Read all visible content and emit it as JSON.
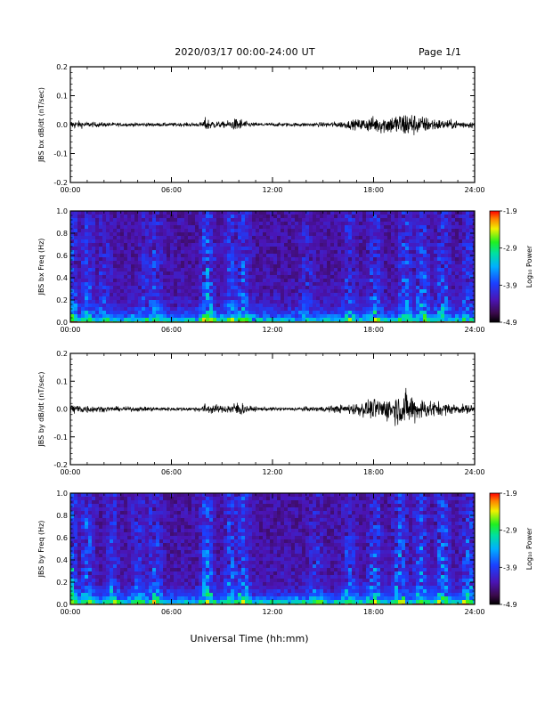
{
  "header": {
    "title": "2020/03/17  00:00-24:00 UT",
    "page": "Page 1/1"
  },
  "x_axis_title": "Universal Time (hh:mm)",
  "chart_data": [
    {
      "type": "line",
      "ylabel": "JBS bx dB/dt (nT/sec)",
      "ylim": [
        -0.2,
        0.2
      ],
      "yticks": [
        "0.2",
        "0.1",
        "0.0",
        "-0.1",
        "-0.2"
      ],
      "xlim_hours": [
        0,
        24
      ],
      "xticks": [
        "00:00",
        "06:00",
        "12:00",
        "18:00",
        "24:00"
      ],
      "series": [
        {
          "color": "#000000",
          "envelope_time_hours": [
            0,
            1,
            2,
            3,
            4,
            5,
            6,
            7,
            7.8,
            8,
            8.5,
            9,
            9.5,
            10,
            10.2,
            10.5,
            11,
            12,
            13,
            14,
            15,
            16,
            16.5,
            17,
            17.5,
            18,
            18.5,
            19,
            19.5,
            20,
            20.5,
            21,
            21.5,
            22,
            23,
            24
          ],
          "envelope_amplitude": [
            0.02,
            0.012,
            0.01,
            0.008,
            0.008,
            0.008,
            0.008,
            0.008,
            0.01,
            0.03,
            0.018,
            0.012,
            0.02,
            0.03,
            0.025,
            0.012,
            0.008,
            0.008,
            0.008,
            0.008,
            0.01,
            0.014,
            0.018,
            0.022,
            0.03,
            0.035,
            0.04,
            0.04,
            0.05,
            0.06,
            0.045,
            0.035,
            0.03,
            0.022,
            0.018,
            0.014
          ]
        }
      ]
    },
    {
      "type": "heatmap",
      "ylabel": "JBS bx Freq (Hz)",
      "ylim": [
        0.0,
        1.0
      ],
      "yticks": [
        "1.0",
        "0.8",
        "0.6",
        "0.4",
        "0.2",
        "0.0"
      ],
      "xlim_hours": [
        0,
        24
      ],
      "xticks": [
        "00:00",
        "06:00",
        "12:00",
        "18:00",
        "24:00"
      ],
      "colorbar": {
        "label": "Log₁₀ Power",
        "range": [
          -4.9,
          -1.9
        ],
        "ticks": [
          "-1.9",
          "-2.9",
          "-3.9",
          "-4.9"
        ]
      },
      "power_events": [
        {
          "hour": 0.0,
          "power": 0.6
        },
        {
          "hour": 1.0,
          "power": 0.45
        },
        {
          "hour": 2.0,
          "power": 0.35
        },
        {
          "hour": 4.5,
          "power": 0.3
        },
        {
          "hour": 5.0,
          "power": 0.45
        },
        {
          "hour": 8.1,
          "power": 0.7
        },
        {
          "hour": 9.5,
          "power": 0.5
        },
        {
          "hour": 10.2,
          "power": 0.55
        },
        {
          "hour": 14.0,
          "power": 0.3
        },
        {
          "hour": 16.5,
          "power": 0.4
        },
        {
          "hour": 18.0,
          "power": 0.5
        },
        {
          "hour": 19.8,
          "power": 0.6
        },
        {
          "hour": 20.8,
          "power": 0.55
        },
        {
          "hour": 22.0,
          "power": 0.55
        },
        {
          "hour": 23.5,
          "power": 0.45
        }
      ]
    },
    {
      "type": "line",
      "ylabel": "JBS by dB/dt (nT/sec)",
      "ylim": [
        -0.2,
        0.2
      ],
      "yticks": [
        "0.2",
        "0.1",
        "0.0",
        "-0.1",
        "-0.2"
      ],
      "xlim_hours": [
        0,
        24
      ],
      "xticks": [
        "00:00",
        "06:00",
        "12:00",
        "18:00",
        "24:00"
      ],
      "series": [
        {
          "color": "#000000",
          "envelope_time_hours": [
            0,
            1,
            2,
            3,
            4,
            5,
            6,
            7,
            7.8,
            8,
            8.5,
            9,
            9.5,
            10,
            10.2,
            10.5,
            11,
            12,
            13,
            14,
            15,
            16,
            16.5,
            17,
            17.5,
            18,
            18.5,
            19,
            19.5,
            20,
            20.5,
            21,
            21.5,
            22,
            23,
            24
          ],
          "envelope_amplitude": [
            0.025,
            0.018,
            0.012,
            0.01,
            0.01,
            0.01,
            0.008,
            0.008,
            0.012,
            0.025,
            0.02,
            0.015,
            0.025,
            0.035,
            0.03,
            0.015,
            0.01,
            0.008,
            0.008,
            0.01,
            0.012,
            0.018,
            0.022,
            0.03,
            0.035,
            0.045,
            0.05,
            0.055,
            0.07,
            0.08,
            0.06,
            0.045,
            0.04,
            0.03,
            0.022,
            0.018
          ]
        }
      ]
    },
    {
      "type": "heatmap",
      "ylabel": "JBS by Freq (Hz)",
      "ylim": [
        0.0,
        1.0
      ],
      "yticks": [
        "1.0",
        "0.8",
        "0.6",
        "0.4",
        "0.2",
        "0.0"
      ],
      "xlim_hours": [
        0,
        24
      ],
      "xticks": [
        "00:00",
        "06:00",
        "12:00",
        "18:00",
        "24:00"
      ],
      "colorbar": {
        "label": "Log₁₀ Power",
        "range": [
          -4.9,
          -1.9
        ],
        "ticks": [
          "-1.9",
          "-2.9",
          "-3.9",
          "-4.9"
        ]
      },
      "power_events": [
        {
          "hour": 0.0,
          "power": 0.75
        },
        {
          "hour": 1.0,
          "power": 0.6
        },
        {
          "hour": 2.5,
          "power": 0.45
        },
        {
          "hour": 4.0,
          "power": 0.4
        },
        {
          "hour": 5.0,
          "power": 0.5
        },
        {
          "hour": 8.1,
          "power": 0.75
        },
        {
          "hour": 9.5,
          "power": 0.55
        },
        {
          "hour": 10.2,
          "power": 0.6
        },
        {
          "hour": 14.5,
          "power": 0.35
        },
        {
          "hour": 16.5,
          "power": 0.45
        },
        {
          "hour": 18.0,
          "power": 0.6
        },
        {
          "hour": 19.5,
          "power": 0.7
        },
        {
          "hour": 20.7,
          "power": 0.65
        },
        {
          "hour": 22.0,
          "power": 0.65
        },
        {
          "hour": 23.5,
          "power": 0.55
        }
      ]
    }
  ]
}
